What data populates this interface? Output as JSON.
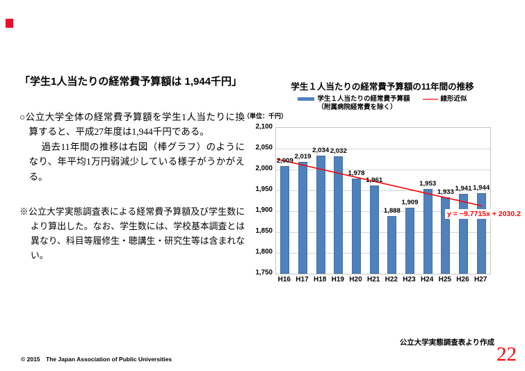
{
  "left_panel": {
    "title": "「学生1人当たりの経常費予算額は 1,944千円」",
    "paragraphs": [
      "○公立大学全体の経常費予算額を学生1人当たりに換算すると、平成27年度は1,944千円である。",
      "　過去11年間の推移は右図（棒グラフ）のようになり、年平均1万円弱減少している様子がうかがえる。"
    ],
    "note": "※公立大学実態調査表による経常費予算額及び学生数により算出した。なお、学生数には、学校基本調査とは異なり、科目等履修生・聴講生・研究生等は含まれない。"
  },
  "chart_data": {
    "type": "bar",
    "title": "学生１人当たりの経常費予算額の11年間の推移",
    "unit_label": "（単位：千円）",
    "categories": [
      "H16",
      "H17",
      "H18",
      "H19",
      "H20",
      "H21",
      "H22",
      "H23",
      "H24",
      "H25",
      "H26",
      "H27"
    ],
    "values": [
      2009,
      2019,
      2034,
      2032,
      1978,
      1961,
      1888,
      1909,
      1953,
      1933,
      1941,
      1944
    ],
    "series_name": "学生１人当たりの経常費予算額",
    "series_name_line2": "（附属病院経常費を除く）",
    "trendline_label": "線形近似",
    "trendline_equation": "y = −9.7715x + 2030.2",
    "trendline": {
      "slope": -9.7715,
      "intercept": 2030.2
    },
    "ylim": [
      1750,
      2100
    ],
    "ytick_step": 50,
    "xlabel": "",
    "ylabel": "千円",
    "grid": true,
    "legend_position": "top",
    "bar_color": "#4F81BD",
    "trend_color": "#FF0000"
  },
  "footer": {
    "source": "公立大学実態調査表より作成",
    "copyright": "© 2015　The Japan Association of Public Universities",
    "page_number": "22"
  },
  "accent_red": "#e8112d"
}
